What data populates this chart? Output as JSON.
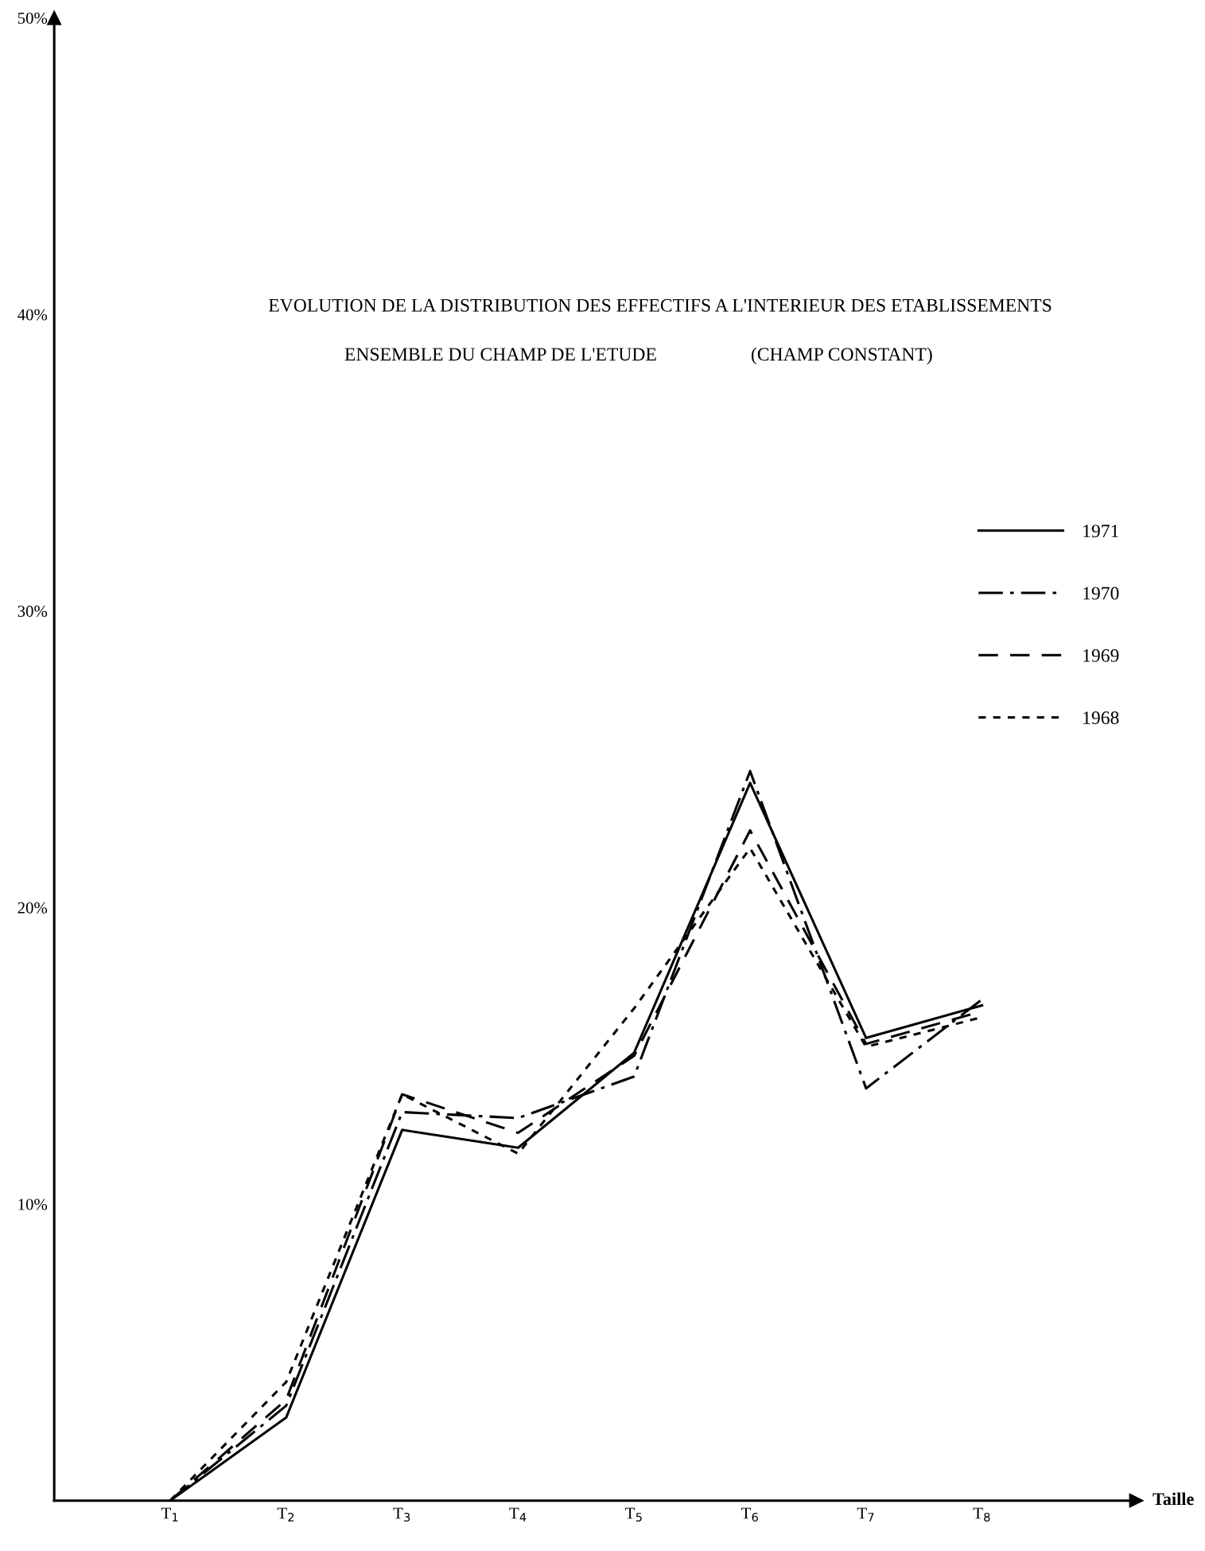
{
  "chart_data": {
    "type": "line",
    "title": "EVOLUTION DE LA DISTRIBUTION DES EFFECTIFS A L'INTERIEUR DES ETABLISSEMENTS",
    "subtitle": "ENSEMBLE DU CHAMP DE L'ETUDE                    (CHAMP CONSTANT)",
    "xlabel": "Taille",
    "categories": [
      "T$_{1}$",
      "T$_{2}$",
      "T$_{3}$",
      "T$_{4}$",
      "T$_{5}$",
      "T$_{6}$",
      "T$_{7}$",
      "T$_{8}$"
    ],
    "series": [
      {
        "name": "1971",
        "color": "#000000",
        "line_style": "solid",
        "values": [
          0,
          2.8,
          12.5,
          11.9,
          15.1,
          24.2,
          15.6,
          16.7
        ]
      },
      {
        "name": "1970",
        "color": "#000000",
        "line_style": "dashdot",
        "values": [
          0,
          3.2,
          13.1,
          12.9,
          14.3,
          24.6,
          13.9,
          16.9
        ]
      },
      {
        "name": "1969",
        "color": "#000000",
        "line_style": "dashed",
        "values": [
          0,
          3.4,
          13.7,
          12.4,
          15.0,
          22.6,
          15.4,
          16.5
        ]
      },
      {
        "name": "1968",
        "color": "#000000",
        "line_style": "dotted",
        "values": [
          0,
          4.0,
          13.7,
          11.7,
          16.6,
          22.0,
          15.3,
          16.3
        ]
      }
    ],
    "ylim": [
      0,
      50
    ],
    "yticks": [
      {
        "value": 10,
        "label": "10%"
      },
      {
        "value": 20,
        "label": "20%"
      },
      {
        "value": 30,
        "label": "30%"
      },
      {
        "value": 40,
        "label": "40%"
      },
      {
        "value": 50,
        "label": "50%"
      }
    ],
    "grid": false,
    "legend": "right",
    "marker": "none"
  }
}
